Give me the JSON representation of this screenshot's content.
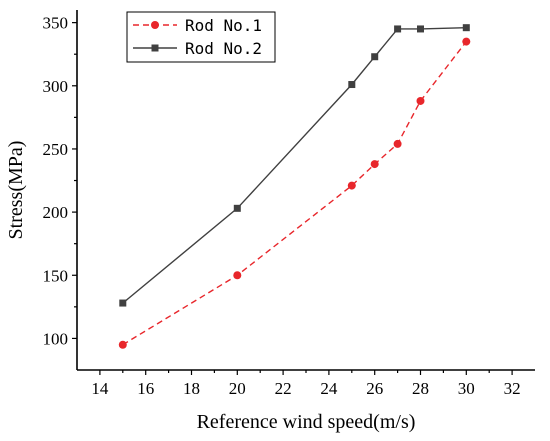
{
  "chart_data": {
    "type": "line",
    "xlabel": "Reference wind speed(m/s)",
    "ylabel": "Stress(MPa)",
    "xlim": [
      13,
      33
    ],
    "ylim": [
      75,
      360
    ],
    "xticks": [
      14,
      16,
      18,
      20,
      22,
      24,
      26,
      28,
      30,
      32
    ],
    "yticks": [
      100,
      150,
      200,
      250,
      300,
      350
    ],
    "legend_position": "top-left",
    "grid": false,
    "series": [
      {
        "name": "Rod No.1",
        "color": "#e8262b",
        "line_style": "dashed",
        "marker": "circle",
        "x": [
          15,
          20,
          25,
          26,
          27,
          28,
          30
        ],
        "y": [
          95,
          150,
          221,
          238,
          254,
          288,
          335
        ]
      },
      {
        "name": "Rod No.2",
        "color": "#404040",
        "line_style": "solid",
        "marker": "square",
        "x": [
          15,
          20,
          25,
          26,
          27,
          28,
          30
        ],
        "y": [
          128,
          203,
          301,
          323,
          345,
          345,
          346
        ]
      }
    ]
  }
}
